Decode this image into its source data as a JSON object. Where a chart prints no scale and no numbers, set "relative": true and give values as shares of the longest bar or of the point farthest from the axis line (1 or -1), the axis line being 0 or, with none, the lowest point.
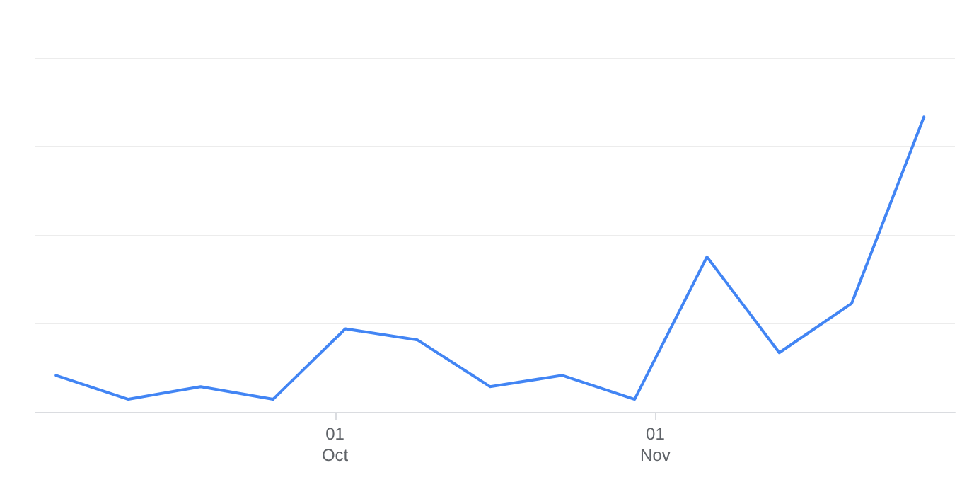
{
  "chart_data": {
    "type": "line",
    "relative": true,
    "grid": "y",
    "marker": "none",
    "line_style": "solid",
    "x": [
      "--09-04",
      "--09-11",
      "--09-18",
      "--09-25",
      "--10-02",
      "--10-09",
      "--10-16",
      "--10-23",
      "--10-30",
      "--11-06",
      "--11-13",
      "--11-20",
      "--11-27"
    ],
    "xlim": [
      "--09-02",
      "--11-30"
    ],
    "xticks": [
      {
        "value": "--10-01",
        "label": "01\nOct"
      },
      {
        "value": "--11-01",
        "label": "01\nNov"
      }
    ],
    "series": [
      {
        "color": "#4285f4",
        "values": [
          0.124,
          0.043,
          0.086,
          0.043,
          0.282,
          0.244,
          0.086,
          0.124,
          0.043,
          0.526,
          0.201,
          0.368,
          1
        ]
      }
    ]
  }
}
